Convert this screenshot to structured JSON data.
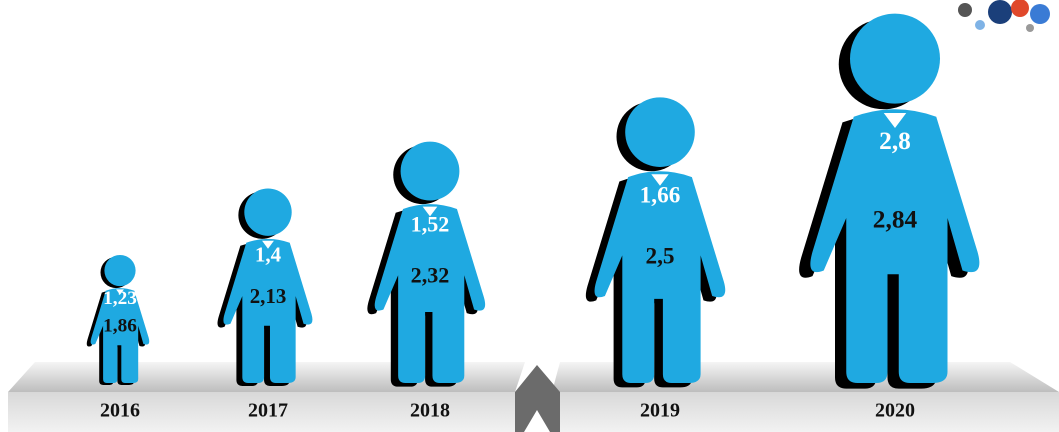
{
  "chart_data": {
    "type": "pictograph",
    "categories": [
      "2016",
      "2017",
      "2018",
      "2019",
      "2020"
    ],
    "color": "#1fa9e1",
    "series": [
      {
        "color": "#ffffff",
        "values": [
          1.23,
          1.4,
          1.52,
          1.66,
          2.8
        ],
        "value_labels": [
          "1,23",
          "1,4",
          "1,52",
          "1,66",
          "2,8"
        ]
      },
      {
        "color": "#111111",
        "values": [
          1.86,
          2.13,
          2.32,
          2.5,
          2.84
        ],
        "value_labels": [
          "1,86",
          "2,13",
          "2,32",
          "2,5",
          "2,84"
        ]
      }
    ]
  }
}
